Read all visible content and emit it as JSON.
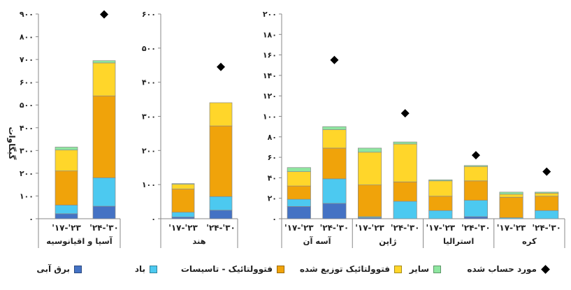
{
  "colors": {
    "hydro": "#4472C4",
    "wind": "#4CC9F0",
    "pv_utility": "#F0A30A",
    "pv_distributed": "#FFD62A",
    "other": "#8EE6A0",
    "estimate": "#000000"
  },
  "legend": [
    {
      "key": "hydro",
      "label": "برق آبی",
      "kind": "box"
    },
    {
      "key": "wind",
      "label": "باد",
      "kind": "box"
    },
    {
      "key": "pv_utility",
      "label": "فتوولتائیک - تاسیسات",
      "kind": "box"
    },
    {
      "key": "pv_distributed",
      "label": "فتوولتائیک توزیع شده",
      "kind": "box"
    },
    {
      "key": "other",
      "label": "سایر",
      "kind": "box"
    },
    {
      "key": "estimate",
      "label": "مورد حساب شده",
      "kind": "diamond"
    }
  ],
  "chart_data": [
    {
      "type": "bar",
      "stacked": true,
      "ylabel": "گیگاوات",
      "ylim": [
        0,
        900
      ],
      "yticks": [
        "۰",
        "۱۰۰",
        "۲۰۰",
        "۳۰۰",
        "۴۰۰",
        "۵۰۰",
        "۶۰۰",
        "۷۰۰",
        "۸۰۰",
        "۹۰۰"
      ],
      "groups": [
        {
          "label": "آسیا و اقیانوسیه",
          "categories": [
            "'۱۷-'۲۳",
            "'۲۴-'۳۰"
          ],
          "stacks": [
            {
              "hydro": 22,
              "wind": 38,
              "pv_utility": 150,
              "pv_distributed": 92,
              "other": 13
            },
            {
              "hydro": 55,
              "wind": 125,
              "pv_utility": 360,
              "pv_distributed": 145,
              "other": 10
            }
          ],
          "estimate": [
            null,
            898
          ]
        }
      ]
    },
    {
      "type": "bar",
      "stacked": true,
      "ylim": [
        0,
        600
      ],
      "yticks": [
        "۰",
        "۱۰۰",
        "۲۰۰",
        "۳۰۰",
        "۴۰۰",
        "۵۰۰",
        "۶۰۰"
      ],
      "groups": [
        {
          "label": "هند",
          "categories": [
            "'۱۷-'۲۳",
            "'۲۴-'۳۰"
          ],
          "stacks": [
            {
              "hydro": 5,
              "wind": 14,
              "pv_utility": 68,
              "pv_distributed": 14,
              "other": 2
            },
            {
              "hydro": 25,
              "wind": 40,
              "pv_utility": 207,
              "pv_distributed": 68,
              "other": 0
            }
          ],
          "estimate": [
            null,
            445
          ]
        }
      ]
    },
    {
      "type": "bar",
      "stacked": true,
      "ylim": [
        0,
        200
      ],
      "yticks": [
        "۰",
        "۲۰",
        "۴۰",
        "۶۰",
        "۸۰",
        "۱۰۰",
        "۱۲۰",
        "۱۴۰",
        "۱۶۰",
        "۱۸۰",
        "۲۰۰"
      ],
      "groups": [
        {
          "label": "آسه آن",
          "categories": [
            "'۱۷-'۲۳",
            "'۲۴-'۳۰"
          ],
          "stacks": [
            {
              "hydro": 12,
              "wind": 7,
              "pv_utility": 13,
              "pv_distributed": 14,
              "other": 4
            },
            {
              "hydro": 15,
              "wind": 24,
              "pv_utility": 30,
              "pv_distributed": 18,
              "other": 3
            }
          ],
          "estimate": [
            null,
            155
          ]
        },
        {
          "label": "ژاپن",
          "categories": [
            "'۱۷-'۲۳",
            "'۲۴-'۳۰"
          ],
          "stacks": [
            {
              "hydro": 1,
              "wind": 1,
              "pv_utility": 31,
              "pv_distributed": 32,
              "other": 4
            },
            {
              "hydro": 0,
              "wind": 17,
              "pv_utility": 19,
              "pv_distributed": 37,
              "other": 2
            }
          ],
          "estimate": [
            null,
            103
          ]
        },
        {
          "label": "استرالیا",
          "categories": [
            "'۱۷-'۲۳",
            "'۲۴-'۳۰"
          ],
          "stacks": [
            {
              "hydro": 0,
              "wind": 8,
              "pv_utility": 14,
              "pv_distributed": 15,
              "other": 1
            },
            {
              "hydro": 2,
              "wind": 16,
              "pv_utility": 19,
              "pv_distributed": 14,
              "other": 1
            }
          ],
          "estimate": [
            null,
            62
          ]
        },
        {
          "label": "کره",
          "categories": [
            "'۱۷-'۲۳",
            "'۲۴-'۳۰"
          ],
          "stacks": [
            {
              "hydro": 0,
              "wind": 1,
              "pv_utility": 20,
              "pv_distributed": 3,
              "other": 2
            },
            {
              "hydro": 0,
              "wind": 8,
              "pv_utility": 14,
              "pv_distributed": 3,
              "other": 1
            }
          ],
          "estimate": [
            null,
            46
          ]
        }
      ]
    }
  ]
}
